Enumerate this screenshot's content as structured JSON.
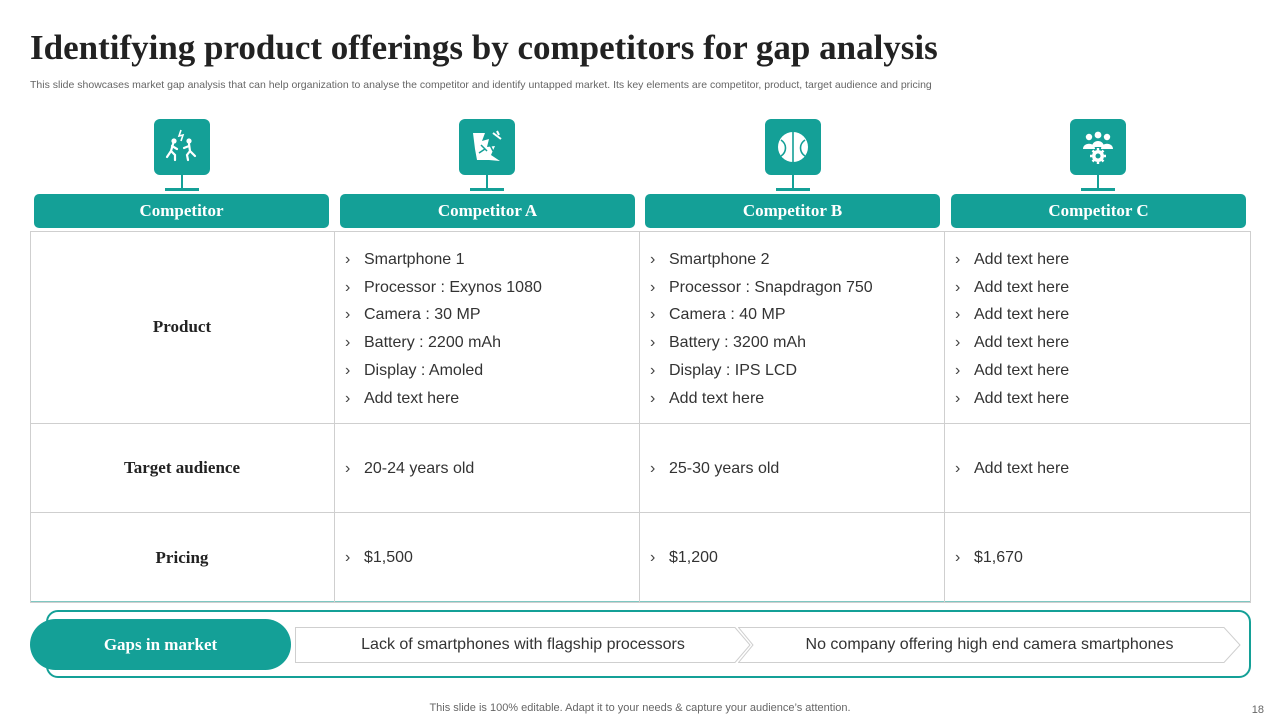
{
  "title": "Identifying product offerings by competitors  for gap analysis",
  "subtitle": "This slide showcases market gap analysis that can help organization to analyse the competitor and identify untapped market. Its key elements are competitor, product, target audience and pricing",
  "colors": {
    "accent": "#14a097",
    "accent_light": "#7fc7c1",
    "grid": "#cfcfcf"
  },
  "icons": [
    "competition-icon",
    "broken-glass-icon",
    "ball-icon",
    "team-gear-icon"
  ],
  "columns": [
    "Competitor",
    "Competitor A",
    "Competitor B",
    "Competitor C"
  ],
  "rows": {
    "product": {
      "label": "Product",
      "a": [
        "Smartphone 1",
        "Processor : Exynos  1080",
        "Camera : 30 MP",
        "Battery : 2200 mAh",
        "Display : Amoled",
        "Add text here"
      ],
      "b": [
        "Smartphone 2",
        "Processor : Snapdragon 750",
        "Camera : 40 MP",
        "Battery : 3200 mAh",
        "Display : IPS LCD",
        "Add text here"
      ],
      "c": [
        "Add text here",
        "Add text here",
        "Add text here",
        "Add text here",
        "Add text here",
        "Add text here"
      ]
    },
    "audience": {
      "label": "Target audience",
      "a": [
        "20-24 years old"
      ],
      "b": [
        "25-30 years old"
      ],
      "c": [
        "Add text here"
      ]
    },
    "pricing": {
      "label": "Pricing",
      "a": [
        "$1,500"
      ],
      "b": [
        "$1,200"
      ],
      "c": [
        "$1,670"
      ]
    }
  },
  "bullet": "›",
  "gaps": {
    "label": "Gaps in market",
    "items": [
      "Lack of smartphones with flagship processors",
      "No company offering high end camera smartphones"
    ]
  },
  "footer": "This slide is 100% editable. Adapt it to your needs & capture your audience’s attention.",
  "page_number": "18"
}
